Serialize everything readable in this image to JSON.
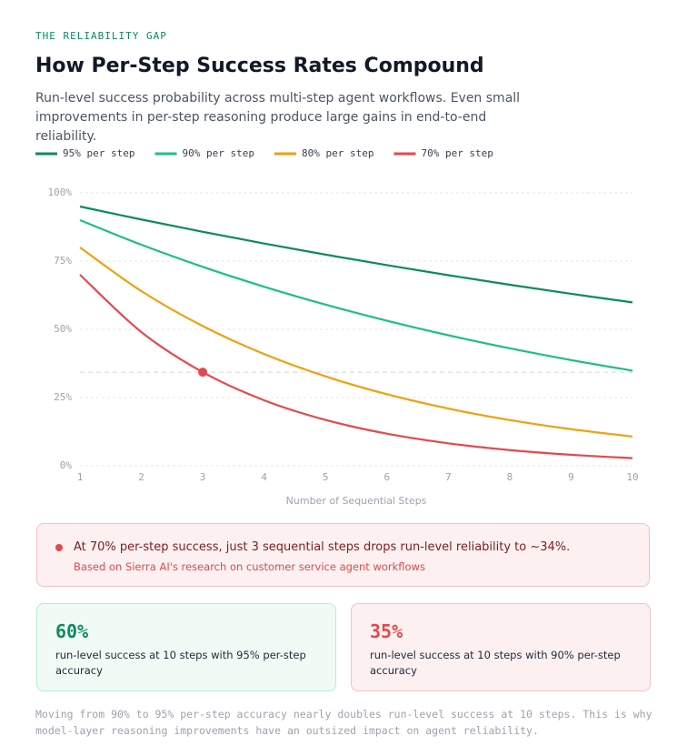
{
  "header": {
    "kicker": "THE RELIABILITY GAP",
    "title": "How Per-Step Success Rates Compound",
    "subtitle": "Run-level success probability across multi-step agent workflows. Even small improvements in per-step reasoning produce large gains in end-to-end reliability."
  },
  "chart_data": {
    "type": "line",
    "x": [
      1,
      2,
      3,
      4,
      5,
      6,
      7,
      8,
      9,
      10
    ],
    "xlabel": "Number of Sequential Steps",
    "series": [
      {
        "name": "95% per step",
        "color": "#0e8a5f",
        "values": [
          95,
          90.25,
          85.74,
          81.45,
          77.38,
          73.51,
          69.83,
          66.34,
          63.02,
          59.87
        ]
      },
      {
        "name": "90% per step",
        "color": "#1dbf84",
        "values": [
          90,
          81,
          72.9,
          65.61,
          59.05,
          53.14,
          47.83,
          43.05,
          38.74,
          34.87
        ]
      },
      {
        "name": "80% per step",
        "color": "#f0a00c",
        "values": [
          80,
          64,
          51.2,
          40.96,
          32.77,
          26.21,
          20.97,
          16.78,
          13.42,
          10.74
        ]
      },
      {
        "name": "70% per step",
        "color": "#e5484d",
        "values": [
          70,
          49,
          34.3,
          24.01,
          16.81,
          11.76,
          8.24,
          5.76,
          4.04,
          2.82
        ]
      }
    ],
    "xlim": [
      1,
      10
    ],
    "xticks": [
      1,
      2,
      3,
      4,
      5,
      6,
      7,
      8,
      9,
      10
    ],
    "ylim": [
      0,
      100
    ],
    "yticks": [
      {
        "value": 0,
        "label": "0%"
      },
      {
        "value": 25,
        "label": "25%"
      },
      {
        "value": 50,
        "label": "50%"
      },
      {
        "value": 75,
        "label": "75%"
      },
      {
        "value": 100,
        "label": "100%"
      }
    ],
    "grid": true,
    "annotation_point": {
      "x": 3,
      "y": 34.3
    }
  },
  "callout": {
    "text": "At 70% per-step success, just 3 sequential steps drops run-level reliability to ~34%.",
    "note": "Based on Sierra AI's research on customer service agent workflows"
  },
  "cards": [
    {
      "value": "60%",
      "text": "run-level success at 10 steps with 95% per-step accuracy"
    },
    {
      "value": "35%",
      "text": "run-level success at 10 steps with 90% per-step accuracy"
    }
  ],
  "footer": "Moving from 90% to 95% per-step accuracy nearly doubles run-level success at 10 steps. This is why model-layer reasoning improvements have an outsized impact on agent reliability."
}
